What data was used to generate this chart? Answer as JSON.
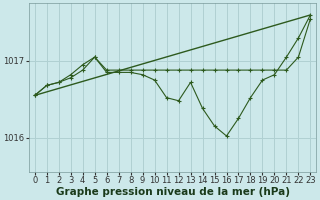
{
  "bg_color": "#cce8ea",
  "grid_color": "#b0d0d2",
  "line_color": "#2d5a1e",
  "xlabel": "Graphe pression niveau de la mer (hPa)",
  "xlim": [
    -0.5,
    23.5
  ],
  "ylim": [
    1015.55,
    1017.75
  ],
  "yticks": [
    1016,
    1017
  ],
  "xticks": [
    0,
    1,
    2,
    3,
    4,
    5,
    6,
    7,
    8,
    9,
    10,
    11,
    12,
    13,
    14,
    15,
    16,
    17,
    18,
    19,
    20,
    21,
    22,
    23
  ],
  "series1_x": [
    0,
    1,
    2,
    3,
    4,
    5,
    6,
    7,
    8,
    9,
    10,
    11,
    12,
    13,
    14,
    15,
    16,
    17,
    18,
    19,
    20,
    21,
    22,
    23
  ],
  "series1_y": [
    1016.55,
    1016.68,
    1016.72,
    1016.82,
    1016.95,
    1017.05,
    1016.88,
    1016.88,
    1016.88,
    1016.88,
    1016.88,
    1016.88,
    1016.88,
    1016.88,
    1016.88,
    1016.88,
    1016.88,
    1016.88,
    1016.88,
    1016.88,
    1016.88,
    1016.88,
    1017.05,
    1017.55
  ],
  "series2_x": [
    0,
    1,
    2,
    3,
    4,
    5,
    6,
    7,
    8,
    9,
    10,
    11,
    12,
    13,
    14,
    15,
    16,
    17,
    18,
    19,
    20,
    21,
    22,
    23
  ],
  "series2_y": [
    1016.55,
    1016.68,
    1016.72,
    1016.78,
    1016.88,
    1017.05,
    1016.85,
    1016.85,
    1016.85,
    1016.82,
    1016.75,
    1016.52,
    1016.48,
    1016.72,
    1016.38,
    1016.15,
    1016.02,
    1016.25,
    1016.52,
    1016.75,
    1016.82,
    1017.05,
    1017.3,
    1017.6
  ],
  "trend_x": [
    0,
    23
  ],
  "trend_y": [
    1016.55,
    1017.6
  ],
  "tick_fontsize": 6.0,
  "xlabel_fontsize": 7.5
}
